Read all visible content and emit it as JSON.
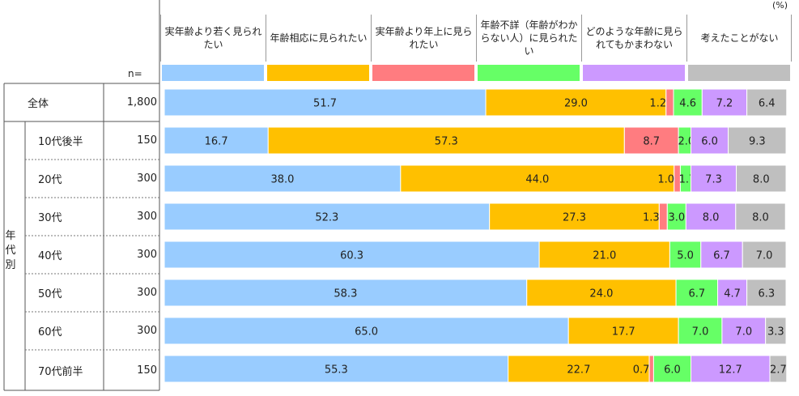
{
  "unit_label": "(%)",
  "n_label": "n=",
  "group_label": "年代別",
  "chart_data": {
    "type": "bar",
    "orientation": "horizontal-stacked-100",
    "series": [
      {
        "name": "実年齢より若く見られたい",
        "color": "#99ccff"
      },
      {
        "name": "年齢相応に見られたい",
        "color": "#ffc000"
      },
      {
        "name": "実年齢より年上に見られたい",
        "color": "#ff7c80"
      },
      {
        "name": "年齢不詳（年齢がわからない人）に見られたい",
        "color": "#66ff66"
      },
      {
        "name": "どのような年齢に見られてもかまわない",
        "color": "#cc99ff"
      },
      {
        "name": "考えたことがない",
        "color": "#bfbfbf"
      }
    ],
    "rows": [
      {
        "label": "全体",
        "n": "1,800",
        "values": [
          51.7,
          29.0,
          1.2,
          4.6,
          7.2,
          6.4
        ],
        "texts": [
          "51.7",
          "29.0",
          "1.2",
          "4.6",
          "7.2",
          "6.4"
        ]
      },
      {
        "label": "10代後半",
        "n": "150",
        "values": [
          16.7,
          57.3,
          8.7,
          2.0,
          6.0,
          9.3
        ],
        "texts": [
          "16.7",
          "57.3",
          "8.7",
          "2.0",
          "6.0",
          "9.3"
        ]
      },
      {
        "label": "20代",
        "n": "300",
        "values": [
          38.0,
          44.0,
          1.0,
          1.7,
          7.3,
          8.0
        ],
        "texts": [
          "38.0",
          "44.0",
          "1.0",
          "1.7",
          "7.3",
          "8.0"
        ]
      },
      {
        "label": "30代",
        "n": "300",
        "values": [
          52.3,
          27.3,
          1.3,
          3.0,
          8.0,
          8.0
        ],
        "texts": [
          "52.3",
          "27.3",
          "1.3",
          "3.0",
          "8.0",
          "8.0"
        ]
      },
      {
        "label": "40代",
        "n": "300",
        "values": [
          60.3,
          21.0,
          0.0,
          5.0,
          6.7,
          7.0
        ],
        "texts": [
          "60.3",
          "21.0",
          "",
          "5.0",
          "6.7",
          "7.0"
        ]
      },
      {
        "label": "50代",
        "n": "300",
        "values": [
          58.3,
          24.0,
          0.0,
          6.7,
          4.7,
          6.3
        ],
        "texts": [
          "58.3",
          "24.0",
          "",
          "6.7",
          "4.7",
          "6.3"
        ]
      },
      {
        "label": "60代",
        "n": "300",
        "values": [
          65.0,
          17.7,
          0.0,
          7.0,
          7.0,
          3.3
        ],
        "texts": [
          "65.0",
          "17.7",
          "",
          "7.0",
          "7.0",
          "3.3"
        ]
      },
      {
        "label": "70代前半",
        "n": "150",
        "values": [
          55.3,
          22.7,
          0.7,
          6.0,
          12.7,
          2.7
        ],
        "texts": [
          "55.3",
          "22.7",
          "0.7",
          "6.0",
          "12.7",
          "2.7"
        ]
      }
    ],
    "xlim": [
      0,
      100
    ]
  }
}
